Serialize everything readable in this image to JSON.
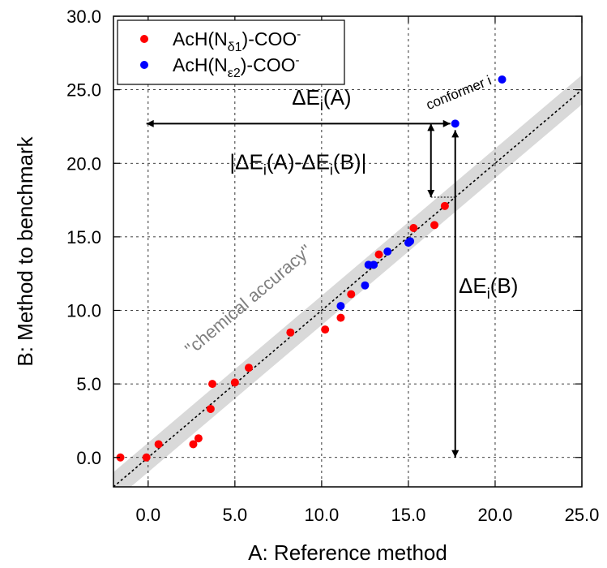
{
  "chart_data": {
    "type": "scatter",
    "xlabel": "A: Reference method",
    "ylabel": "B: Method to benchmark",
    "xlim": [
      -2,
      25
    ],
    "ylim": [
      -2,
      30
    ],
    "x_ticks": [
      "0.0",
      "5.0",
      "10.0",
      "15.0",
      "20.0",
      "25.0"
    ],
    "y_ticks": [
      "0.0",
      "5.0",
      "10.0",
      "15.0",
      "20.0",
      "25.0",
      "30.0"
    ],
    "grid": true,
    "legend_position": "top-left",
    "series": [
      {
        "name": "AcH(Nδ1)-COO-",
        "legend": {
          "base": "AcH(N",
          "sub": "δ1",
          "tail": ")-COO",
          "sup": "-"
        },
        "color": "#ff0000",
        "points": [
          [
            -1.6,
            0.0
          ],
          [
            -0.1,
            0.0
          ],
          [
            0.6,
            0.9
          ],
          [
            2.6,
            0.9
          ],
          [
            2.9,
            1.3
          ],
          [
            3.6,
            3.3
          ],
          [
            3.7,
            5.0
          ],
          [
            5.0,
            5.1
          ],
          [
            5.8,
            6.1
          ],
          [
            8.2,
            8.5
          ],
          [
            10.2,
            8.7
          ],
          [
            11.1,
            9.5
          ],
          [
            11.7,
            11.1
          ],
          [
            13.3,
            13.8
          ],
          [
            15.3,
            15.6
          ],
          [
            16.5,
            15.8
          ],
          [
            17.1,
            17.1
          ]
        ]
      },
      {
        "name": "AcH(Nε2)-COO-",
        "legend": {
          "base": "AcH(N",
          "sub": "ε2",
          "tail": ")-COO",
          "sup": "-"
        },
        "color": "#0000ff",
        "points": [
          [
            11.1,
            10.3
          ],
          [
            12.5,
            11.7
          ],
          [
            12.7,
            13.1
          ],
          [
            13.0,
            13.1
          ],
          [
            13.8,
            14.0
          ],
          [
            15.0,
            14.6
          ],
          [
            15.1,
            14.7
          ],
          [
            17.7,
            22.7
          ],
          [
            20.4,
            25.7
          ]
        ]
      }
    ],
    "reference_line": {
      "type": "y = x",
      "style": "dotted",
      "band_halfwidth": 1
    },
    "annotations": {
      "band_label": "\"chemical accuracy\"",
      "conformer_label": "conformer i",
      "dea": {
        "base": "ΔE",
        "sub": "i",
        "tail": "(A)"
      },
      "deb": {
        "base": "ΔE",
        "sub": "i",
        "tail": "(B)"
      },
      "diff": {
        "p1": "|ΔE",
        "s1": "i",
        "p2": "(A)-ΔE",
        "s2": "i",
        "p3": "(B)|"
      }
    },
    "conformer_point": [
      17.7,
      22.7
    ]
  }
}
